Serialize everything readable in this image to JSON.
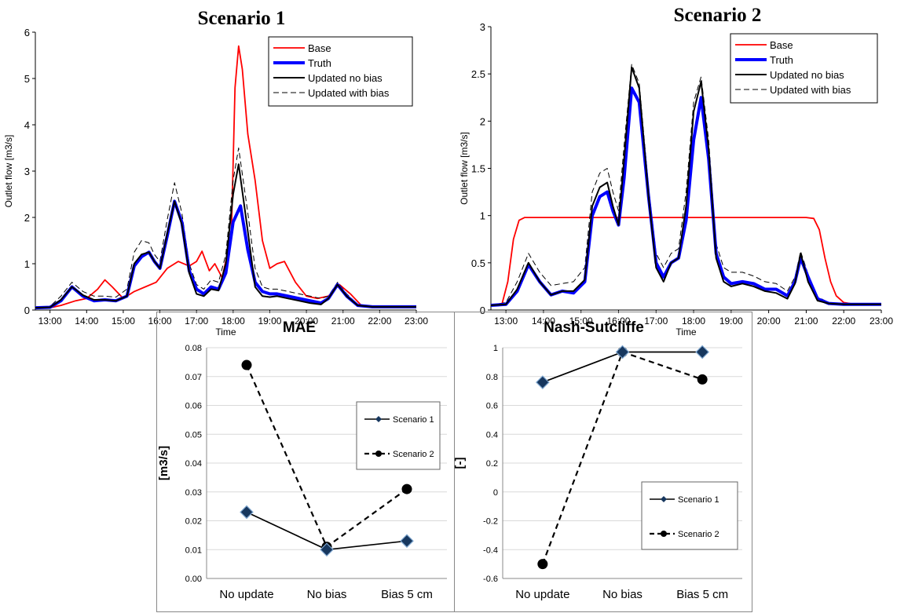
{
  "chart_data": [
    {
      "type": "line",
      "title": "Scenario 1",
      "xlabel": "Time",
      "ylabel": "Outlet flow [m3/s]",
      "xlim": [
        12.6,
        23.0
      ],
      "ylim": [
        0,
        6
      ],
      "x_tick_labels": [
        "13:00",
        "14:00",
        "15:00",
        "16:00",
        "17:00",
        "18:00",
        "19:00",
        "20:00",
        "21:00",
        "22:00",
        "23:00"
      ],
      "y_tick_labels": [
        "0",
        "1",
        "2",
        "3",
        "4",
        "5",
        "6"
      ],
      "legend_position": "top-right",
      "series": [
        {
          "name": "Base",
          "color": "#ff0000",
          "x": [
            12.6,
            13.0,
            13.3,
            13.7,
            14.0,
            14.3,
            14.5,
            14.7,
            15.0,
            15.3,
            15.6,
            15.9,
            16.2,
            16.5,
            16.8,
            17.0,
            17.15,
            17.35,
            17.5,
            17.7,
            17.95,
            18.05,
            18.15,
            18.25,
            18.4,
            18.6,
            18.8,
            19.0,
            19.2,
            19.4,
            19.7,
            20.0,
            20.3,
            20.6,
            20.9,
            21.2,
            21.5,
            22.0,
            22.5,
            23.0
          ],
          "values": [
            0.05,
            0.05,
            0.1,
            0.2,
            0.25,
            0.45,
            0.65,
            0.5,
            0.25,
            0.4,
            0.5,
            0.6,
            0.9,
            1.05,
            0.95,
            1.05,
            1.27,
            0.85,
            1.0,
            0.7,
            1.6,
            4.8,
            5.7,
            5.2,
            3.8,
            2.8,
            1.5,
            0.9,
            1.0,
            1.05,
            0.6,
            0.3,
            0.25,
            0.3,
            0.55,
            0.35,
            0.1,
            0.07,
            0.07,
            0.07
          ]
        },
        {
          "name": "Truth",
          "color": "#0000ff",
          "x": [
            12.6,
            13.0,
            13.3,
            13.6,
            13.9,
            14.2,
            14.5,
            14.8,
            15.1,
            15.3,
            15.5,
            15.7,
            15.85,
            16.0,
            16.2,
            16.4,
            16.6,
            16.8,
            17.0,
            17.2,
            17.4,
            17.6,
            17.8,
            18.0,
            18.2,
            18.4,
            18.6,
            18.8,
            19.0,
            19.2,
            19.5,
            19.8,
            20.1,
            20.4,
            20.6,
            20.85,
            21.1,
            21.4,
            21.8,
            22.3,
            23.0
          ],
          "values": [
            0.05,
            0.06,
            0.2,
            0.5,
            0.3,
            0.2,
            0.22,
            0.2,
            0.3,
            0.95,
            1.15,
            1.25,
            1.05,
            0.9,
            1.6,
            2.35,
            1.9,
            0.85,
            0.45,
            0.35,
            0.5,
            0.45,
            0.8,
            1.9,
            2.25,
            1.3,
            0.6,
            0.4,
            0.35,
            0.35,
            0.3,
            0.25,
            0.2,
            0.15,
            0.25,
            0.55,
            0.3,
            0.1,
            0.07,
            0.07,
            0.07
          ]
        },
        {
          "name": "Updated no bias",
          "color": "#000000",
          "x": [
            12.6,
            13.0,
            13.3,
            13.6,
            13.9,
            14.2,
            14.5,
            14.8,
            15.1,
            15.3,
            15.5,
            15.7,
            15.85,
            16.0,
            16.2,
            16.4,
            16.6,
            16.8,
            17.0,
            17.2,
            17.4,
            17.6,
            17.8,
            18.0,
            18.15,
            18.4,
            18.6,
            18.8,
            19.0,
            19.2,
            19.5,
            19.8,
            20.1,
            20.4,
            20.6,
            20.85,
            21.1,
            21.4,
            21.8,
            22.3,
            23.0
          ],
          "values": [
            0.05,
            0.06,
            0.22,
            0.5,
            0.32,
            0.22,
            0.22,
            0.2,
            0.3,
            1.0,
            1.2,
            1.25,
            1.05,
            0.9,
            1.65,
            2.35,
            1.85,
            0.8,
            0.35,
            0.3,
            0.45,
            0.42,
            1.0,
            2.5,
            3.15,
            1.7,
            0.5,
            0.3,
            0.28,
            0.3,
            0.25,
            0.2,
            0.15,
            0.12,
            0.25,
            0.55,
            0.3,
            0.1,
            0.07,
            0.07,
            0.07
          ]
        },
        {
          "name": "Updated with bias",
          "color": "#000000",
          "dash": true,
          "x": [
            12.6,
            13.0,
            13.3,
            13.6,
            13.9,
            14.2,
            14.5,
            14.8,
            15.1,
            15.3,
            15.5,
            15.7,
            15.85,
            16.0,
            16.2,
            16.4,
            16.6,
            16.8,
            17.0,
            17.2,
            17.4,
            17.6,
            17.8,
            18.0,
            18.15,
            18.4,
            18.6,
            18.8,
            19.0,
            19.2,
            19.5,
            19.8,
            20.1,
            20.4,
            20.6,
            20.85,
            21.1,
            21.4,
            21.8,
            22.3,
            23.0
          ],
          "values": [
            0.05,
            0.08,
            0.3,
            0.6,
            0.4,
            0.3,
            0.3,
            0.28,
            0.45,
            1.25,
            1.5,
            1.45,
            1.2,
            1.05,
            1.95,
            2.75,
            2.1,
            1.0,
            0.55,
            0.45,
            0.65,
            0.6,
            1.2,
            2.8,
            3.5,
            2.1,
            0.9,
            0.5,
            0.45,
            0.45,
            0.4,
            0.35,
            0.3,
            0.25,
            0.3,
            0.6,
            0.35,
            0.12,
            0.08,
            0.07,
            0.07
          ]
        }
      ]
    },
    {
      "type": "line",
      "title": "Scenario 2",
      "xlabel": "Time",
      "ylabel": "Outlet flow [m3/s]",
      "xlim": [
        12.6,
        23.0
      ],
      "ylim": [
        0,
        3
      ],
      "x_tick_labels": [
        "13:00",
        "14:00",
        "15:00",
        "16:00",
        "17:00",
        "18:00",
        "19:00",
        "20:00",
        "21:00",
        "22:00",
        "23:00"
      ],
      "y_tick_labels": [
        "0",
        "0.5",
        "1",
        "1.5",
        "2",
        "2.5",
        "3"
      ],
      "legend_position": "top-right",
      "series": [
        {
          "name": "Base",
          "color": "#ff0000",
          "x": [
            12.6,
            12.9,
            13.05,
            13.2,
            13.35,
            13.5,
            14.0,
            15.0,
            16.0,
            17.0,
            18.0,
            19.0,
            20.0,
            21.0,
            21.2,
            21.35,
            21.5,
            21.65,
            21.8,
            22.0,
            22.3,
            23.0
          ],
          "values": [
            0.05,
            0.07,
            0.3,
            0.75,
            0.95,
            0.98,
            0.98,
            0.98,
            0.98,
            0.98,
            0.98,
            0.98,
            0.98,
            0.98,
            0.97,
            0.85,
            0.55,
            0.3,
            0.15,
            0.08,
            0.06,
            0.06
          ]
        },
        {
          "name": "Truth",
          "color": "#0000ff",
          "x": [
            12.6,
            13.0,
            13.3,
            13.6,
            13.9,
            14.2,
            14.5,
            14.8,
            15.1,
            15.3,
            15.5,
            15.7,
            15.85,
            16.0,
            16.15,
            16.35,
            16.55,
            16.8,
            17.0,
            17.2,
            17.4,
            17.6,
            17.8,
            18.0,
            18.2,
            18.4,
            18.6,
            18.8,
            19.0,
            19.3,
            19.6,
            19.9,
            20.2,
            20.5,
            20.7,
            20.85,
            21.05,
            21.3,
            21.6,
            22.0,
            22.5,
            23.0
          ],
          "values": [
            0.05,
            0.06,
            0.2,
            0.48,
            0.3,
            0.16,
            0.2,
            0.18,
            0.3,
            1.0,
            1.2,
            1.25,
            1.05,
            0.9,
            1.4,
            2.35,
            2.2,
            1.2,
            0.5,
            0.35,
            0.5,
            0.55,
            0.95,
            1.8,
            2.25,
            1.6,
            0.6,
            0.35,
            0.28,
            0.3,
            0.28,
            0.22,
            0.22,
            0.15,
            0.3,
            0.55,
            0.35,
            0.12,
            0.07,
            0.06,
            0.06,
            0.06
          ]
        },
        {
          "name": "Updated no bias",
          "color": "#000000",
          "x": [
            12.6,
            13.0,
            13.3,
            13.6,
            13.9,
            14.2,
            14.5,
            14.8,
            15.1,
            15.3,
            15.5,
            15.7,
            15.85,
            16.0,
            16.15,
            16.35,
            16.55,
            16.8,
            17.0,
            17.2,
            17.4,
            17.6,
            17.8,
            18.0,
            18.2,
            18.4,
            18.6,
            18.8,
            19.0,
            19.3,
            19.6,
            19.9,
            20.2,
            20.5,
            20.7,
            20.85,
            21.05,
            21.3,
            21.6,
            22.0,
            22.5,
            23.0
          ],
          "values": [
            0.05,
            0.06,
            0.22,
            0.5,
            0.3,
            0.16,
            0.2,
            0.2,
            0.32,
            1.1,
            1.3,
            1.35,
            1.1,
            0.9,
            1.6,
            2.57,
            2.35,
            1.2,
            0.45,
            0.3,
            0.5,
            0.55,
            1.1,
            2.1,
            2.42,
            1.7,
            0.55,
            0.3,
            0.25,
            0.28,
            0.25,
            0.2,
            0.18,
            0.12,
            0.28,
            0.6,
            0.3,
            0.1,
            0.07,
            0.06,
            0.06,
            0.06
          ]
        },
        {
          "name": "Updated with bias",
          "color": "#000000",
          "dash": true,
          "x": [
            12.6,
            13.0,
            13.3,
            13.6,
            13.9,
            14.2,
            14.5,
            14.8,
            15.1,
            15.3,
            15.5,
            15.7,
            15.85,
            16.0,
            16.15,
            16.35,
            16.55,
            16.8,
            17.0,
            17.2,
            17.4,
            17.6,
            17.8,
            18.0,
            18.2,
            18.4,
            18.6,
            18.8,
            19.0,
            19.3,
            19.6,
            19.9,
            20.2,
            20.5,
            20.7,
            20.85,
            21.05,
            21.3,
            21.6,
            22.0,
            22.5,
            23.0
          ],
          "values": [
            0.05,
            0.08,
            0.3,
            0.6,
            0.4,
            0.26,
            0.28,
            0.3,
            0.45,
            1.25,
            1.45,
            1.5,
            1.25,
            1.05,
            1.75,
            2.6,
            2.4,
            1.3,
            0.6,
            0.45,
            0.6,
            0.65,
            1.25,
            2.2,
            2.47,
            1.8,
            0.7,
            0.45,
            0.4,
            0.4,
            0.36,
            0.3,
            0.28,
            0.2,
            0.35,
            0.62,
            0.38,
            0.14,
            0.08,
            0.06,
            0.06,
            0.06
          ]
        }
      ]
    },
    {
      "type": "line",
      "title": "MAE",
      "ylabel": "[m3/s]",
      "categories": [
        "No update",
        "No bias",
        "Bias 5 cm"
      ],
      "ylim": [
        0,
        0.08
      ],
      "y_tick_labels": [
        "0.00",
        "0.01",
        "0.02",
        "0.03",
        "0.04",
        "0.05",
        "0.06",
        "0.07",
        "0.08"
      ],
      "legend_position": "top-right",
      "series": [
        {
          "name": "Scenario 1",
          "marker": "diamond",
          "values": [
            0.023,
            0.01,
            0.013
          ]
        },
        {
          "name": "Scenario 2",
          "marker": "circle",
          "dash": true,
          "values": [
            0.074,
            0.011,
            0.031
          ]
        }
      ]
    },
    {
      "type": "line",
      "title": "Nash-Sutcliffe",
      "ylabel": "[-]",
      "categories": [
        "No update",
        "No bias",
        "Bias 5 cm"
      ],
      "ylim": [
        -0.6,
        1
      ],
      "y_tick_labels": [
        "1",
        "0.8",
        "0.6",
        "0.4",
        "0.2",
        "0",
        "-0.2",
        "-0.4",
        "-0.6"
      ],
      "legend_position": "bottom-right",
      "series": [
        {
          "name": "Scenario 1",
          "marker": "diamond",
          "values": [
            0.76,
            0.97,
            0.97
          ]
        },
        {
          "name": "Scenario 2",
          "marker": "circle",
          "dash": true,
          "values": [
            -0.5,
            0.97,
            0.78
          ]
        }
      ]
    }
  ]
}
